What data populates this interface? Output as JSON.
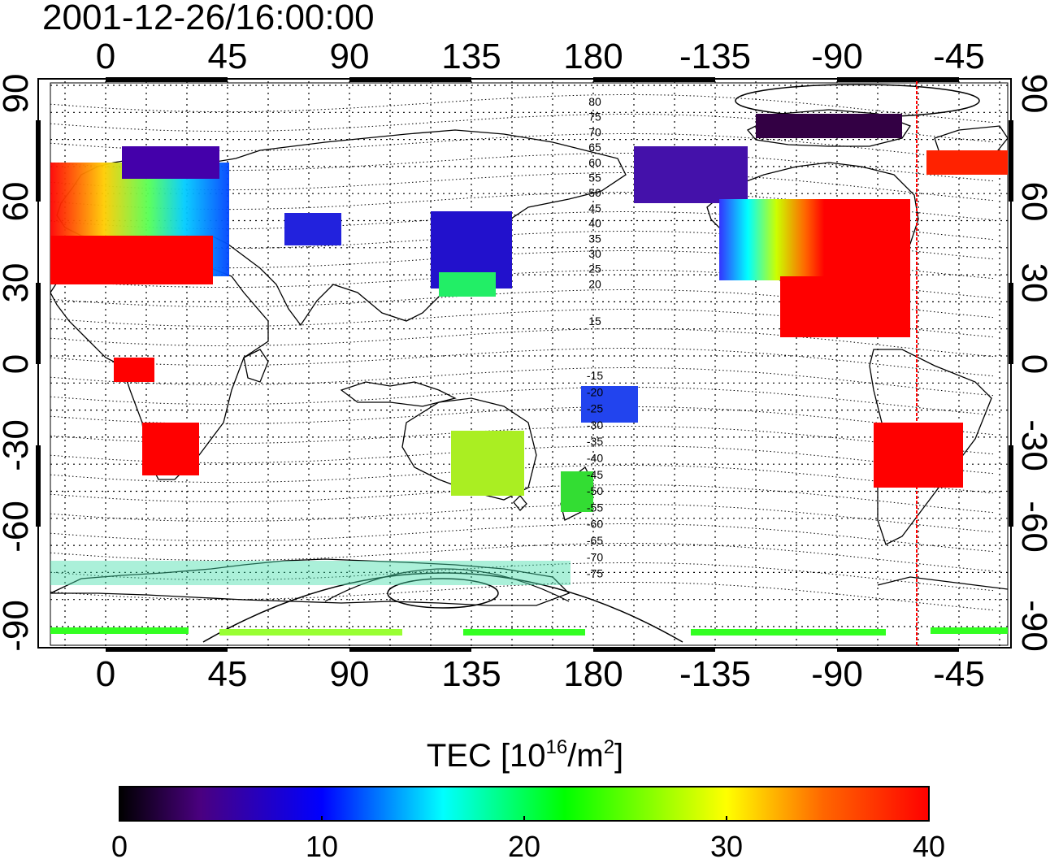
{
  "title": "2001-12-26/16:00:00",
  "colorbar": {
    "title_prefix": "TEC  [10",
    "title_exp": "16",
    "title_mid": "/m",
    "title_exp2": "2",
    "title_suffix": "]",
    "min": 0,
    "max": 40,
    "ticks": [
      "0",
      "10",
      "20",
      "30",
      "40"
    ],
    "colors": [
      "#000000",
      "#4a0080",
      "#0000ff",
      "#00ffff",
      "#00ff00",
      "#ffff00",
      "#ff0000"
    ]
  },
  "map": {
    "lon_ticks": [
      "0",
      "45",
      "90",
      "135",
      "180",
      "-135",
      "-90",
      "-45"
    ],
    "lat_ticks_left": [
      "90",
      "60",
      "30",
      "0",
      "-30",
      "-60",
      "-90"
    ],
    "lat_ticks_right": [
      "90",
      "60",
      "30",
      "0",
      "-30",
      "-60",
      "-90"
    ],
    "contour_labels_north": [
      "80",
      "75",
      "70",
      "65",
      "60",
      "55",
      "50",
      "45",
      "40",
      "35",
      "30",
      "25",
      "20",
      "15"
    ],
    "contour_labels_south": [
      "-15",
      "-20",
      "-25",
      "-30",
      "-35",
      "-40",
      "-45",
      "-50",
      "-55",
      "-60",
      "-65",
      "-70",
      "-75"
    ]
  }
}
